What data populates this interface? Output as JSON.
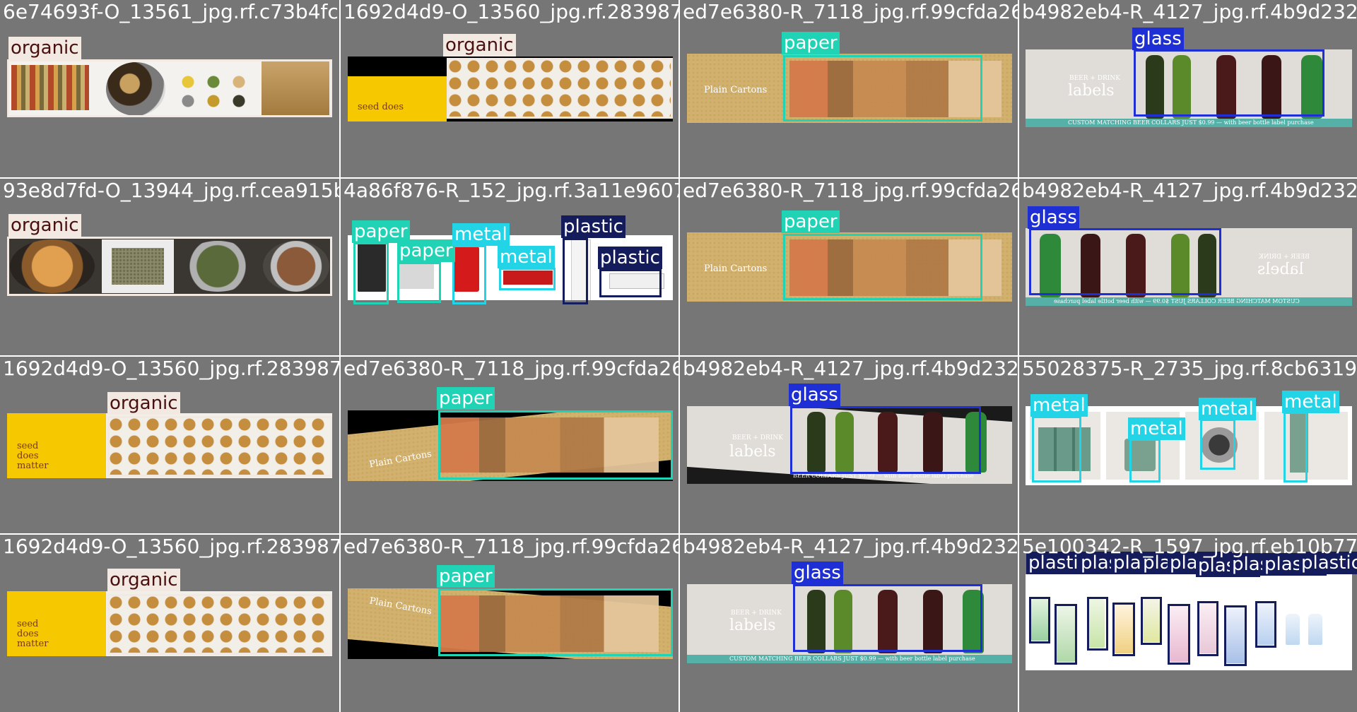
{
  "colors": {
    "tile_bg": "#767676",
    "grid_line": "#ffffff",
    "organic": "#f3e9e3",
    "organic_text": "#4a1010",
    "paper": "#1fd3b4",
    "metal": "#23d4e6",
    "plastic": "#141c5c",
    "glass": "#1f2fd6"
  },
  "tiles": [
    {
      "filename": "6e74693f-O_13561_jpg.rf.c73b4fc1b",
      "labels": [
        "organic"
      ]
    },
    {
      "filename": "1692d4d9-O_13560_jpg.rf.28398781",
      "labels": [
        "organic"
      ],
      "photo_text": "seed does"
    },
    {
      "filename": "ed7e6380-R_7118_jpg.rf.99cfda26a1",
      "labels": [
        "paper"
      ],
      "photo_text": "Plain Cartons"
    },
    {
      "filename": "b4982eb4-R_4127_jpg.rf.4b9d2324b",
      "labels": [
        "glass"
      ],
      "photo_text_1": "BEER + DRINK",
      "photo_text_2": "labels",
      "photo_text_3": "CUSTOM MATCHING BEER COLLARS JUST $0.99 — with beer bottle label purchase"
    },
    {
      "filename": "93e8d7fd-O_13944_jpg.rf.cea915bc1",
      "labels": [
        "organic"
      ]
    },
    {
      "filename": "4a86f876-R_152_jpg.rf.3a11e9607f4",
      "labels": [
        "paper",
        "paper",
        "metal",
        "metal",
        "plastic",
        "plastic"
      ]
    },
    {
      "filename": "ed7e6380-R_7118_jpg.rf.99cfda26a1",
      "labels": [
        "paper"
      ],
      "photo_text": "Plain Cartons"
    },
    {
      "filename": "b4982eb4-R_4127_jpg.rf.4b9d2324b",
      "labels": [
        "glass"
      ],
      "photo_text_1": "BEER + DRINK",
      "photo_text_2": "labels",
      "photo_text_3": "CUSTOM MATCHING BEER COLLARS JUST $0.99 — with beer bottle label purchase"
    },
    {
      "filename": "1692d4d9-O_13560_jpg.rf.28398781",
      "labels": [
        "organic"
      ],
      "photo_text": "seed does matter"
    },
    {
      "filename": "ed7e6380-R_7118_jpg.rf.99cfda26a1",
      "labels": [
        "paper"
      ],
      "photo_text": "Plain Cartons"
    },
    {
      "filename": "b4982eb4-R_4127_jpg.rf.4b9d2324b",
      "labels": [
        "glass"
      ],
      "photo_text_1": "BEER + DRINK",
      "photo_text_2": "labels",
      "photo_text_3": "BEER COLLARS JUST $0.99 — with beer bottle label purchase"
    },
    {
      "filename": "55028375-R_2735_jpg.rf.8cb631967",
      "labels": [
        "metal",
        "metal",
        "metal",
        "metal"
      ]
    },
    {
      "filename": "1692d4d9-O_13560_jpg.rf.28398781",
      "labels": [
        "organic"
      ],
      "photo_text": "seed does matter"
    },
    {
      "filename": "ed7e6380-R_7118_jpg.rf.99cfda26a1",
      "labels": [
        "paper"
      ],
      "photo_text": "Plain Cartons"
    },
    {
      "filename": "b4982eb4-R_4127_jpg.rf.4b9d2324b",
      "labels": [
        "glass"
      ],
      "photo_text_1": "BEER + DRINK",
      "photo_text_2": "labels",
      "photo_text_3": "CUSTOM MATCHING BEER COLLARS JUST $0.99 — with beer bottle label purchase"
    },
    {
      "filename": "5e100342-R_1597_jpg.rf.eb10b7747",
      "labels": [
        "plastic",
        "plastic",
        "plastic",
        "plastic",
        "plastic",
        "plastic",
        "plastic",
        "plastic",
        "plastic"
      ]
    }
  ]
}
